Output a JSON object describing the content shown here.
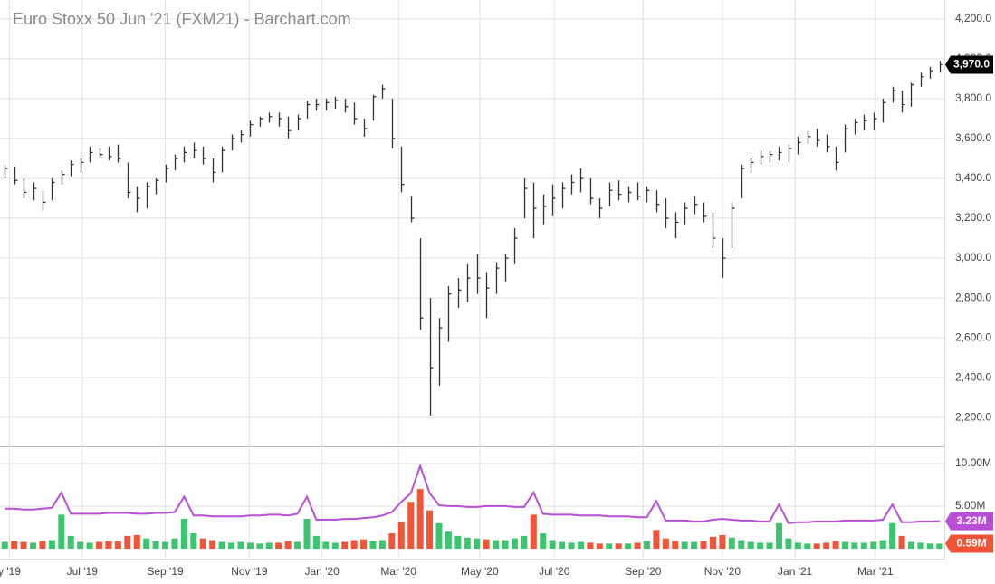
{
  "chart_data": [
    {
      "type": "ohlc",
      "title": "Euro Stoxx 50 Jun '21 (FXM21) - Barchart.com",
      "color": "#333333",
      "ylim": [
        2060,
        4295
      ],
      "yticks": [
        {
          "value": 2200,
          "label": "2,200.0"
        },
        {
          "value": 2400,
          "label": "2,400.0"
        },
        {
          "value": 2600,
          "label": "2,600.0"
        },
        {
          "value": 2800,
          "label": "2,800.0"
        },
        {
          "value": 3000,
          "label": "3,000.0"
        },
        {
          "value": 3200,
          "label": "3,200.0"
        },
        {
          "value": 3400,
          "label": "3,400.0"
        },
        {
          "value": 3600,
          "label": "3,600.0"
        },
        {
          "value": 3800,
          "label": "3,800.0"
        },
        {
          "value": 4000,
          "label": "4,000.0"
        },
        {
          "value": 4200,
          "label": "4,200.0"
        }
      ],
      "grid": true,
      "high": [
        3470,
        3460,
        3400,
        3380,
        3340,
        3400,
        3440,
        3490,
        3500,
        3560,
        3550,
        3560,
        3570,
        3480,
        3360,
        3380,
        3400,
        3470,
        3520,
        3560,
        3580,
        3560,
        3500,
        3560,
        3620,
        3640,
        3690,
        3710,
        3730,
        3730,
        3710,
        3720,
        3790,
        3800,
        3800,
        3810,
        3800,
        3780,
        3700,
        3820,
        3870,
        3800,
        3560,
        3310,
        3100,
        2800,
        2700,
        2860,
        2900,
        2970,
        3020,
        2930,
        2980,
        3020,
        3150,
        3400,
        3380,
        3320,
        3370,
        3380,
        3420,
        3450,
        3400,
        3300,
        3380,
        3390,
        3360,
        3380,
        3360,
        3340,
        3300,
        3230,
        3280,
        3310,
        3280,
        3230,
        3100,
        3280,
        3470,
        3500,
        3540,
        3540,
        3560,
        3570,
        3610,
        3640,
        3650,
        3620,
        3560,
        3670,
        3700,
        3720,
        3730,
        3800,
        3860,
        3840,
        3880,
        3930,
        3960,
        3990
      ],
      "low": [
        3400,
        3370,
        3300,
        3290,
        3240,
        3290,
        3370,
        3410,
        3430,
        3480,
        3500,
        3490,
        3480,
        3300,
        3230,
        3250,
        3320,
        3380,
        3440,
        3480,
        3500,
        3470,
        3380,
        3430,
        3540,
        3580,
        3610,
        3660,
        3680,
        3660,
        3600,
        3640,
        3700,
        3740,
        3740,
        3750,
        3730,
        3670,
        3610,
        3690,
        3800,
        3550,
        3330,
        3180,
        2640,
        2210,
        2360,
        2580,
        2750,
        2780,
        2820,
        2700,
        2820,
        2880,
        2970,
        3200,
        3100,
        3170,
        3210,
        3250,
        3320,
        3330,
        3270,
        3200,
        3260,
        3290,
        3280,
        3290,
        3280,
        3230,
        3150,
        3100,
        3170,
        3220,
        3180,
        3050,
        2900,
        3050,
        3300,
        3430,
        3470,
        3480,
        3490,
        3480,
        3520,
        3570,
        3560,
        3530,
        3440,
        3530,
        3620,
        3640,
        3640,
        3680,
        3780,
        3730,
        3760,
        3860,
        3900,
        3930
      ],
      "close": [
        3450,
        3390,
        3330,
        3350,
        3280,
        3380,
        3420,
        3470,
        3480,
        3530,
        3520,
        3510,
        3500,
        3330,
        3300,
        3360,
        3390,
        3450,
        3500,
        3530,
        3540,
        3500,
        3430,
        3540,
        3600,
        3620,
        3670,
        3700,
        3710,
        3700,
        3640,
        3700,
        3770,
        3770,
        3780,
        3790,
        3760,
        3700,
        3650,
        3810,
        3850,
        3600,
        3370,
        3200,
        2700,
        2450,
        2650,
        2820,
        2840,
        2900,
        2900,
        2850,
        2950,
        3000,
        3100,
        3350,
        3250,
        3260,
        3300,
        3350,
        3380,
        3400,
        3300,
        3250,
        3340,
        3320,
        3330,
        3310,
        3340,
        3270,
        3200,
        3180,
        3250,
        3270,
        3210,
        3100,
        3000,
        3250,
        3450,
        3480,
        3510,
        3520,
        3530,
        3550,
        3580,
        3610,
        3590,
        3560,
        3480,
        3650,
        3680,
        3690,
        3700,
        3780,
        3840,
        3770,
        3870,
        3910,
        3940,
        3970
      ],
      "badge": {
        "value": 3970,
        "label": "3,970.0",
        "color": "#000000"
      }
    },
    {
      "type": "volume",
      "up_color": "#3cc46e",
      "down_color": "#f0553a",
      "line_color": "#b84fd6",
      "ylim": [
        0,
        11.9
      ],
      "yticks": [
        {
          "value": 5,
          "label": "5.00M"
        },
        {
          "value": 10,
          "label": "10.00M"
        }
      ],
      "xlim": [
        -0.5,
        99.5
      ],
      "xticks": [
        {
          "value": 0.5,
          "label": "y '19"
        },
        {
          "value": 8.2,
          "label": "Jul '19"
        },
        {
          "value": 17.0,
          "label": "Sep '19"
        },
        {
          "value": 25.9,
          "label": "Nov '19"
        },
        {
          "value": 33.6,
          "label": "Jan '20"
        },
        {
          "value": 41.7,
          "label": "Mar '20"
        },
        {
          "value": 50.3,
          "label": "May '20"
        },
        {
          "value": 58.2,
          "label": "Jul '20"
        },
        {
          "value": 67.6,
          "label": "Sep '20"
        },
        {
          "value": 76.0,
          "label": "Nov '20"
        },
        {
          "value": 83.7,
          "label": "Jan '21"
        },
        {
          "value": 92.2,
          "label": "Mar '21"
        }
      ],
      "values": [
        0.8,
        0.9,
        0.8,
        0.7,
        0.9,
        1.0,
        4.0,
        1.5,
        0.8,
        0.7,
        0.8,
        0.9,
        0.9,
        1.5,
        1.6,
        1.2,
        0.9,
        0.8,
        1.2,
        3.5,
        1.8,
        1.2,
        1.0,
        0.8,
        0.7,
        0.8,
        0.7,
        0.6,
        0.7,
        0.7,
        0.9,
        0.8,
        3.5,
        1.5,
        0.8,
        0.7,
        0.8,
        1.0,
        1.1,
        0.9,
        1.0,
        1.8,
        3.2,
        5.5,
        7.0,
        4.5,
        3.0,
        2.0,
        1.5,
        1.3,
        1.2,
        1.1,
        1.0,
        1.0,
        1.2,
        1.5,
        4.0,
        1.8,
        1.0,
        0.8,
        0.7,
        0.8,
        0.7,
        0.6,
        0.6,
        0.6,
        0.6,
        0.7,
        0.9,
        2.2,
        1.2,
        0.9,
        0.8,
        0.8,
        0.9,
        1.4,
        1.6,
        1.3,
        1.0,
        0.8,
        0.7,
        0.7,
        3.0,
        1.2,
        0.7,
        0.6,
        0.6,
        0.7,
        0.9,
        0.8,
        0.7,
        0.7,
        0.8,
        1.0,
        3.0,
        1.5,
        0.8,
        0.7,
        0.6,
        0.59
      ],
      "line_values": [
        4.7,
        4.7,
        4.6,
        4.6,
        4.7,
        4.8,
        6.6,
        4.1,
        4.1,
        4.1,
        4.1,
        4.2,
        4.2,
        4.2,
        4.1,
        4.1,
        4.2,
        4.2,
        4.3,
        6.1,
        3.9,
        3.9,
        3.8,
        3.8,
        3.8,
        3.8,
        3.9,
        3.9,
        4.0,
        4.0,
        3.9,
        4.1,
        6.1,
        3.4,
        3.4,
        3.4,
        3.5,
        3.5,
        3.6,
        3.7,
        3.9,
        4.3,
        5.5,
        6.5,
        9.7,
        6.5,
        5.1,
        5.0,
        5.0,
        4.9,
        4.9,
        5.0,
        5.0,
        5.0,
        4.9,
        4.9,
        6.6,
        4.1,
        4.0,
        4.0,
        4.0,
        3.9,
        3.9,
        3.9,
        3.8,
        3.8,
        3.8,
        3.7,
        3.7,
        5.6,
        3.3,
        3.3,
        3.3,
        3.2,
        3.2,
        3.4,
        3.5,
        3.4,
        3.3,
        3.3,
        3.2,
        3.2,
        5.2,
        3.0,
        3.1,
        3.1,
        3.2,
        3.2,
        3.2,
        3.3,
        3.3,
        3.3,
        3.3,
        3.4,
        5.2,
        3.1,
        3.1,
        3.2,
        3.2,
        3.23
      ],
      "badges": [
        {
          "value": 3.23,
          "label": "3.23M",
          "color": "#b84fd6"
        },
        {
          "value": 0.59,
          "label": "0.59M",
          "color": "#f0553a"
        }
      ]
    }
  ]
}
